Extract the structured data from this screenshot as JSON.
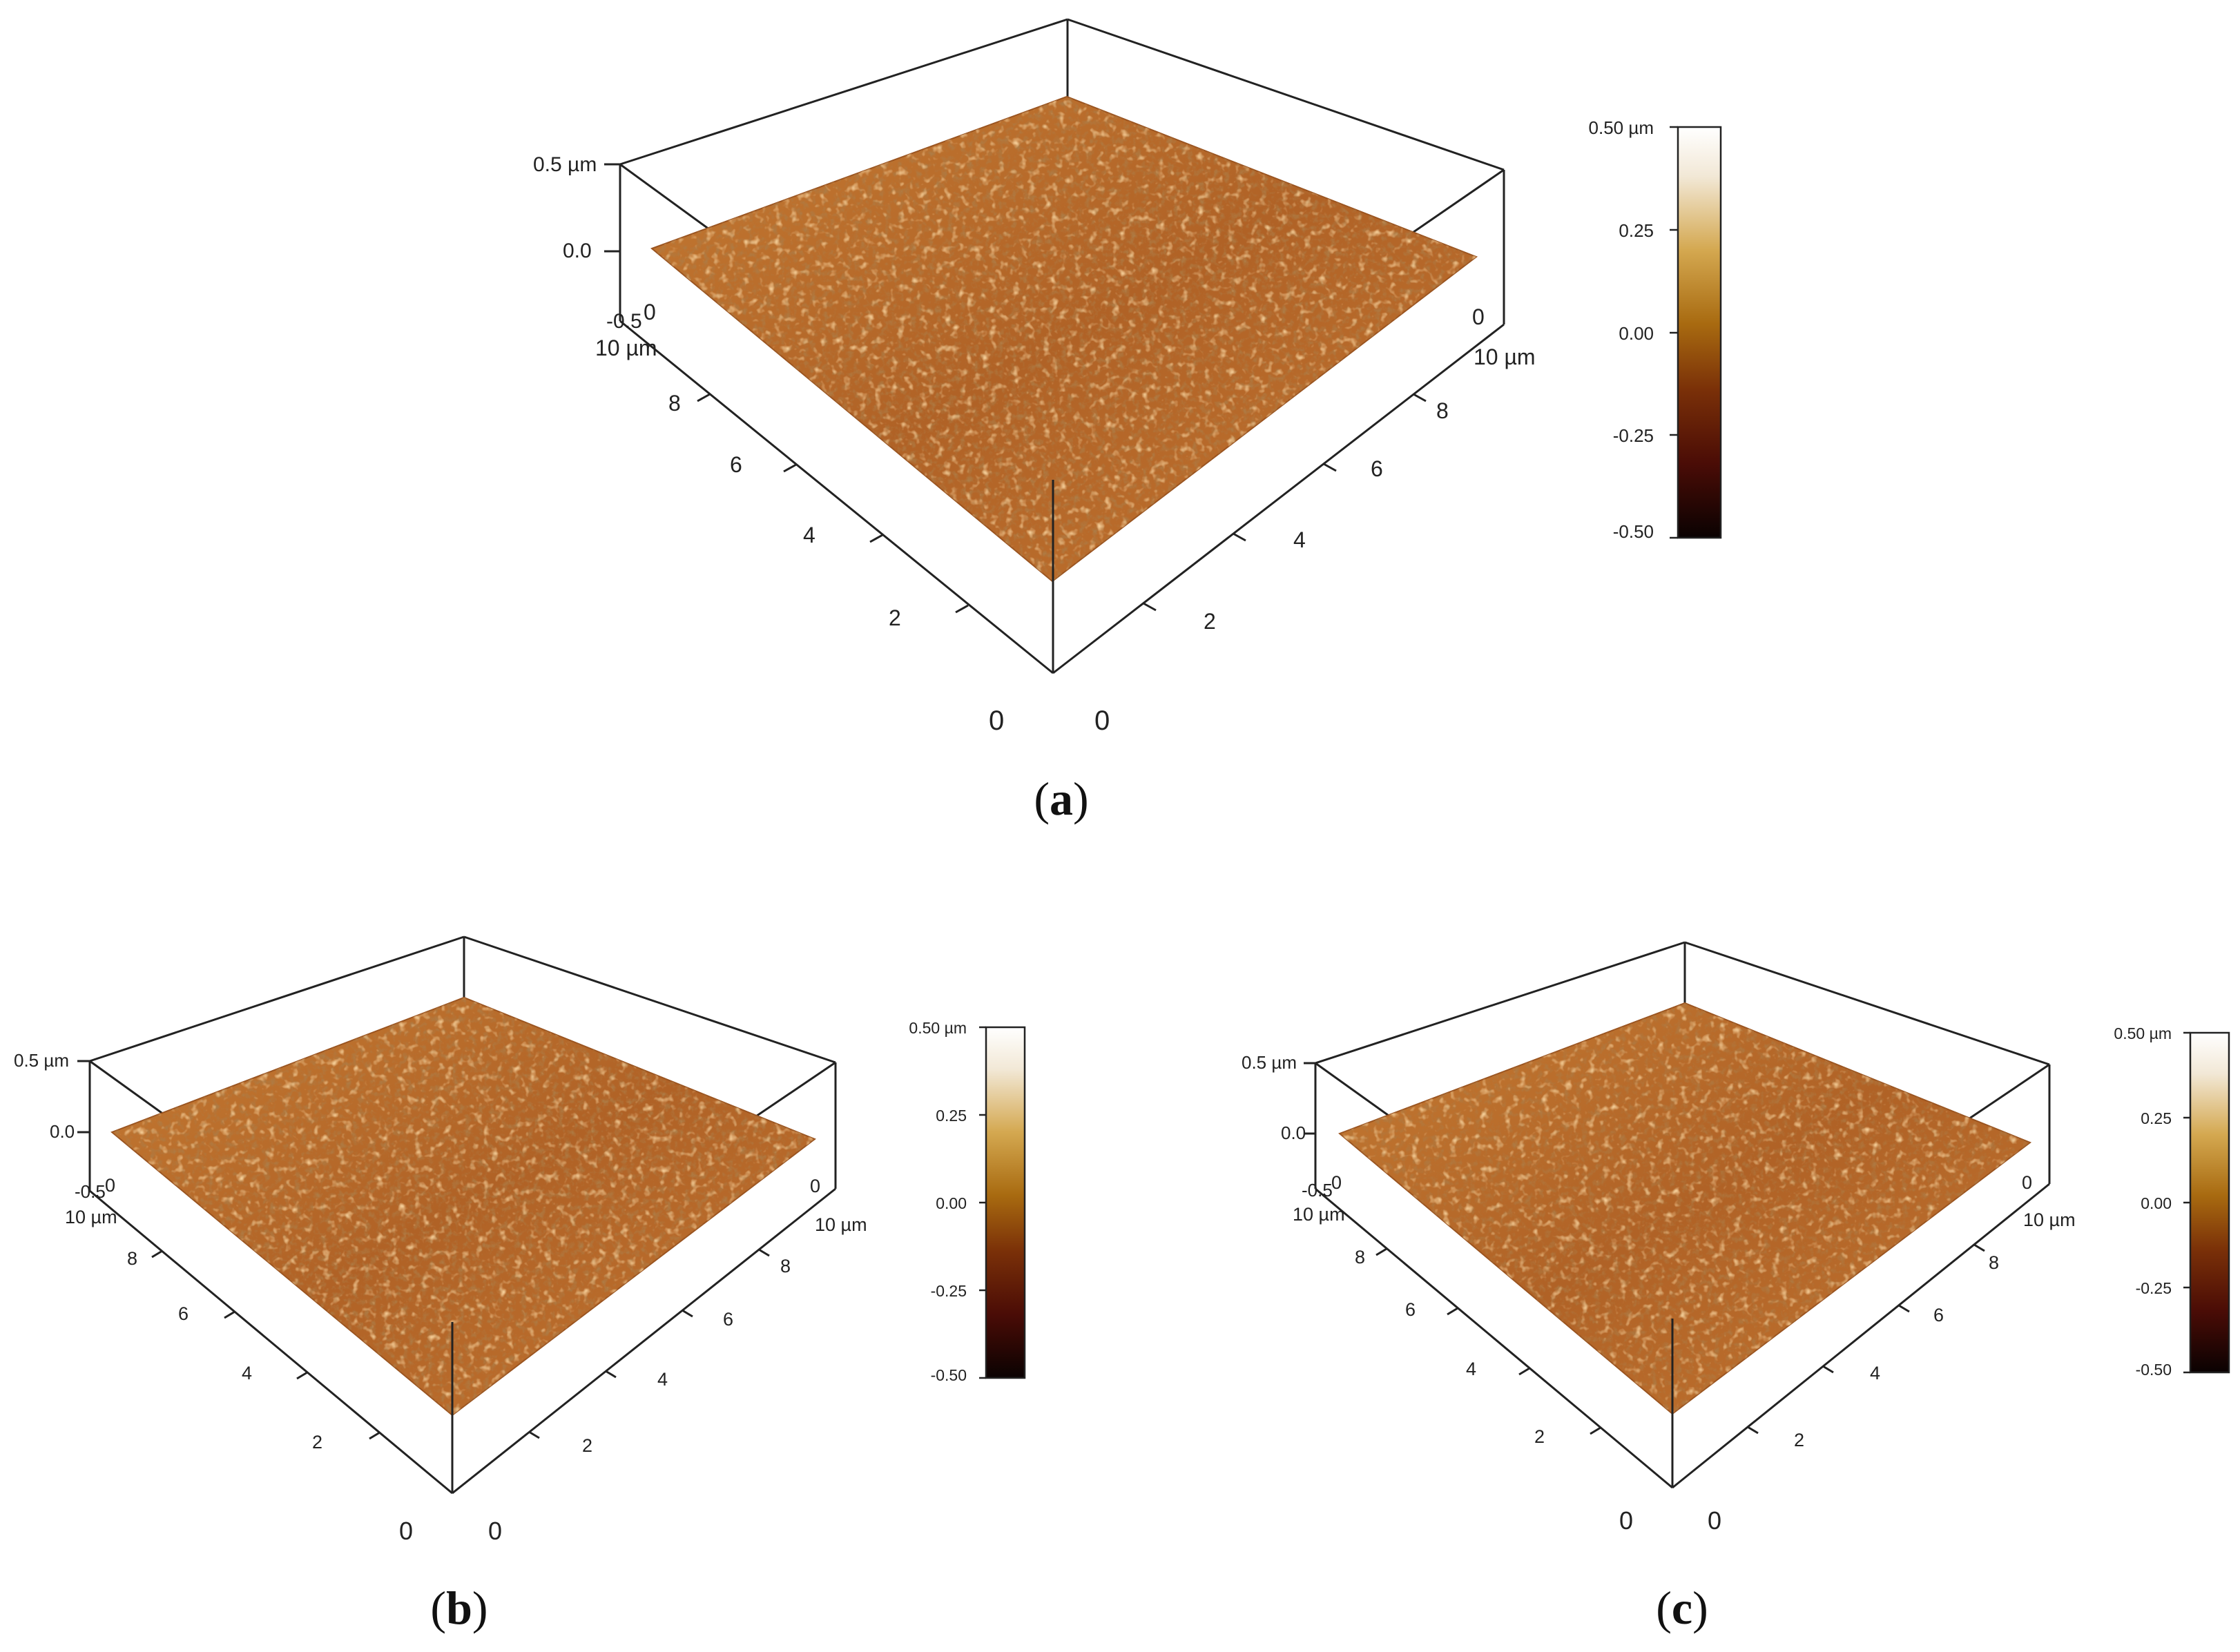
{
  "colors": {
    "lut": [
      "#0a0202",
      "#4a0c06",
      "#7a3008",
      "#a86a10",
      "#d4a850",
      "#f2e8d6",
      "#ffffff"
    ],
    "surface": "#b86a2a"
  },
  "panels": [
    {
      "id": "a",
      "label": "(a)",
      "label_letter": "a",
      "z_ticks": [
        "0.5 µm",
        "0.0",
        "-0.5"
      ],
      "left_axis": [
        "10 µm",
        "8",
        "6",
        "4",
        "2",
        "0"
      ],
      "right_axis": [
        "10 µm",
        "8",
        "6",
        "4",
        "2",
        "0"
      ],
      "corner_left": "0",
      "corner_right": "0",
      "colorbar": [
        "0.50 µm",
        "0.25",
        "0.00",
        "-0.25",
        "-0.50"
      ]
    },
    {
      "id": "b",
      "label": "(b)",
      "label_letter": "b",
      "z_ticks": [
        "0.5 µm",
        "0.0",
        "-0.5"
      ],
      "left_axis": [
        "10 µm",
        "8",
        "6",
        "4",
        "2",
        "0"
      ],
      "right_axis": [
        "10 µm",
        "8",
        "6",
        "4",
        "2",
        "0"
      ],
      "corner_left": "0",
      "corner_right": "0",
      "colorbar": [
        "0.50 µm",
        "0.25",
        "0.00",
        "-0.25",
        "-0.50"
      ]
    },
    {
      "id": "c",
      "label": "(c)",
      "label_letter": "c",
      "z_ticks": [
        "0.5 µm",
        "0.0",
        "-0.5"
      ],
      "left_axis": [
        "10 µm",
        "8",
        "6",
        "4",
        "2",
        "0"
      ],
      "right_axis": [
        "10 µm",
        "8",
        "6",
        "4",
        "2",
        "0"
      ],
      "corner_left": "0",
      "corner_right": "0",
      "colorbar": [
        "0.50 µm",
        "0.25",
        "0.00",
        "-0.25",
        "-0.50"
      ]
    }
  ]
}
